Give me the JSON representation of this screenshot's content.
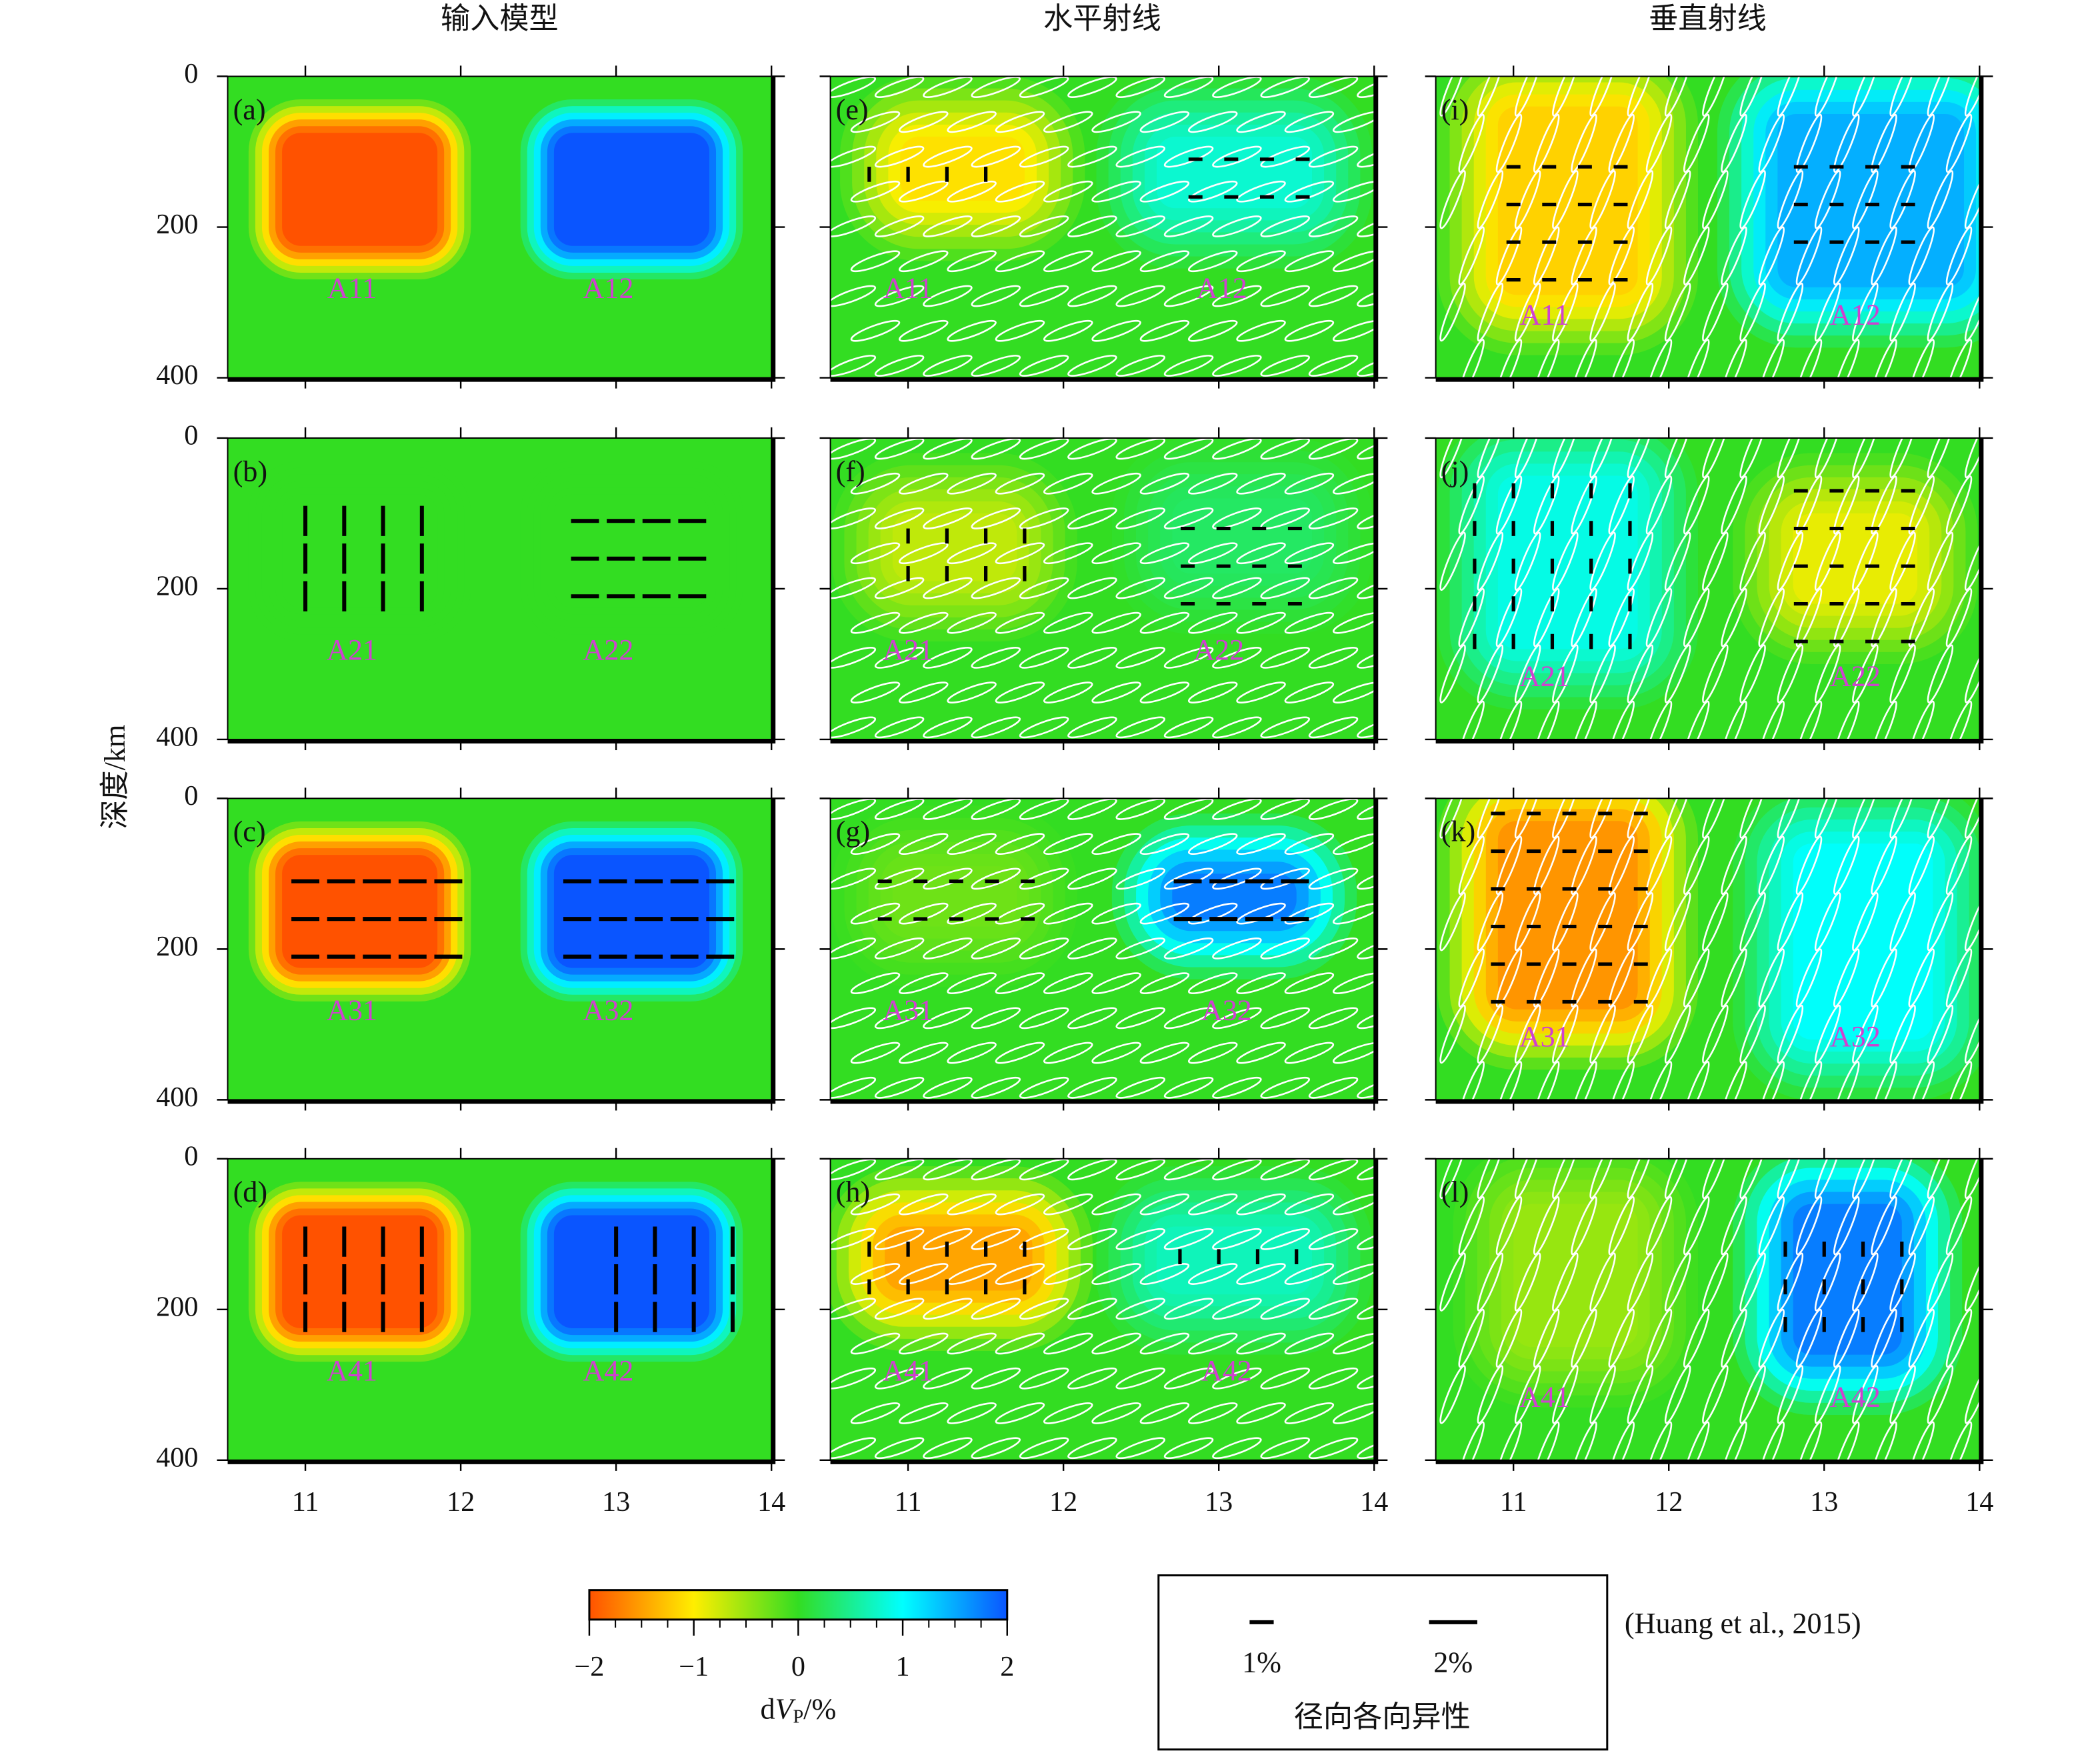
{
  "chart_data": {
    "type": "anomaly-panels",
    "column_titles": [
      "输入模型",
      "水平射线",
      "垂直射线"
    ],
    "ylabel": "深度/km",
    "xlim": [
      10.5,
      14
    ],
    "ylim": [
      0,
      400
    ],
    "xticks": [
      11,
      12,
      13,
      14
    ],
    "yticks": [
      0,
      200,
      400
    ],
    "panels": [
      {
        "label": "(a)",
        "anomalies": [
          {
            "name": "A11",
            "value": -2,
            "x": [
              10.85,
              11.85
            ],
            "depth": [
              75,
              225
            ],
            "label_at": [
              11.3,
              285
            ]
          },
          {
            "name": "A12",
            "value": 2,
            "x": [
              12.6,
              13.6
            ],
            "depth": [
              75,
              225
            ],
            "label_at": [
              12.95,
              285
            ]
          }
        ]
      },
      {
        "label": "(b)",
        "anomalies": [
          {
            "name": "A21",
            "value": 0,
            "x": [
              10.85,
              11.85
            ],
            "depth": [
              75,
              225
            ],
            "label_at": [
              11.3,
              285
            ],
            "bars": {
              "x": [
                11,
                11.75
              ],
              "depth": [
                90,
                230
              ]
            },
            "orientation": "vertical",
            "anisotropy": 2
          },
          {
            "name": "A22",
            "value": 0,
            "x": [
              12.6,
              13.6
            ],
            "depth": [
              75,
              225
            ],
            "label_at": [
              12.95,
              285
            ],
            "bars": {
              "x": [
                12.7,
                13.6
              ],
              "depth": [
                110,
                210
              ]
            },
            "orientation": "horizontal",
            "anisotropy": 2
          }
        ]
      },
      {
        "label": "(c)",
        "anomalies": [
          {
            "name": "A31",
            "value": -2,
            "x": [
              10.85,
              11.85
            ],
            "depth": [
              75,
              225
            ],
            "label_at": [
              11.3,
              285
            ],
            "bars": {
              "x": [
                10.9,
                11.85
              ],
              "depth": [
                110,
                210
              ]
            },
            "orientation": "horizontal",
            "anisotropy": 2
          },
          {
            "name": "A32",
            "value": 2,
            "x": [
              12.6,
              13.6
            ],
            "depth": [
              75,
              225
            ],
            "label_at": [
              12.95,
              285
            ],
            "bars": {
              "x": [
                12.65,
                13.6
              ],
              "depth": [
                110,
                210
              ]
            },
            "orientation": "horizontal",
            "anisotropy": 2
          }
        ]
      },
      {
        "label": "(d)",
        "anomalies": [
          {
            "name": "A41",
            "value": -2,
            "x": [
              10.85,
              11.85
            ],
            "depth": [
              75,
              225
            ],
            "label_at": [
              11.3,
              285
            ],
            "bars": {
              "x": [
                11,
                11.75
              ],
              "depth": [
                90,
                230
              ]
            },
            "orientation": "vertical",
            "anisotropy": 2
          },
          {
            "name": "A42",
            "value": 2,
            "x": [
              12.6,
              13.6
            ],
            "depth": [
              75,
              225
            ],
            "label_at": [
              12.95,
              285
            ],
            "bars": {
              "x": [
                13,
                13.75
              ],
              "depth": [
                90,
                230
              ]
            },
            "orientation": "vertical",
            "anisotropy": 2
          }
        ]
      },
      {
        "label": "(e)",
        "anomalies": [
          {
            "name": "A11",
            "value": -1.1,
            "x": [
              10.95,
              11.75
            ],
            "depth": [
              80,
              165
            ],
            "label_at": [
              11,
              285
            ],
            "bars": {
              "x": [
                10.75,
                11.5
              ],
              "depth": [
                110,
                160
              ]
            },
            "orientation": "vertical",
            "anisotropy": 1
          },
          {
            "name": "A12",
            "value": 0.8,
            "x": [
              12.6,
              13.6
            ],
            "depth": [
              80,
              175
            ],
            "label_at": [
              13.02,
              285
            ],
            "bars": {
              "x": [
                12.75,
                13.5
              ],
              "depth": [
                110,
                160
              ]
            },
            "orientation": "horizontal",
            "anisotropy": 1
          }
        ]
      },
      {
        "label": "(f)",
        "anomalies": [
          {
            "name": "A21",
            "value": -0.7,
            "x": [
              10.9,
              11.7
            ],
            "depth": [
              100,
              190
            ],
            "label_at": [
              11,
              285
            ],
            "bars": {
              "x": [
                11,
                11.75
              ],
              "depth": [
                110,
                210
              ]
            },
            "orientation": "vertical",
            "anisotropy": 1
          },
          {
            "name": "A22",
            "value": 0.3,
            "x": [
              12.7,
              13.6
            ],
            "depth": [
              80,
              180
            ],
            "label_at": [
              13,
              285
            ],
            "bars": {
              "x": [
                12.7,
                13.5
              ],
              "depth": [
                120,
                220
              ]
            },
            "orientation": "horizontal",
            "anisotropy": 1
          }
        ]
      },
      {
        "label": "(g)",
        "anomalies": [
          {
            "name": "A31",
            "value": -0.3,
            "x": [
              10.9,
              11.7
            ],
            "depth": [
              90,
              170
            ],
            "label_at": [
              11,
              285
            ],
            "bars": {
              "x": [
                10.75,
                11.75
              ],
              "depth": [
                110,
                160
              ]
            },
            "orientation": "horizontal",
            "anisotropy": 1
          },
          {
            "name": "A32",
            "value": 1.8,
            "x": [
              12.7,
              13.5
            ],
            "depth": [
              100,
              160
            ],
            "label_at": [
              13.05,
              285
            ],
            "bars": {
              "x": [
                12.7,
                13.5
              ],
              "depth": [
                110,
                160
              ]
            },
            "orientation": "horizontal",
            "anisotropy": 2
          }
        ]
      },
      {
        "label": "(h)",
        "anomalies": [
          {
            "name": "A41",
            "value": -1.5,
            "x": [
              10.85,
              11.8
            ],
            "depth": [
              90,
              175
            ],
            "label_at": [
              11,
              285
            ],
            "bars": {
              "x": [
                10.75,
                11.75
              ],
              "depth": [
                100,
                190
              ]
            },
            "orientation": "vertical",
            "anisotropy": 1
          },
          {
            "name": "A42",
            "value": 0.7,
            "x": [
              12.6,
              13.6
            ],
            "depth": [
              90,
              180
            ],
            "label_at": [
              13.05,
              285
            ],
            "bars": {
              "x": [
                12.75,
                13.5
              ],
              "depth": [
                110,
                160
              ]
            },
            "orientation": "vertical",
            "anisotropy": 1
          }
        ]
      },
      {
        "label": "(i)",
        "anomalies": [
          {
            "name": "A11",
            "value": -1.2,
            "x": [
              10.9,
              11.8
            ],
            "depth": [
              40,
              290
            ],
            "label_at": [
              11.2,
              320
            ],
            "bars": {
              "x": [
                10.9,
                11.8
              ],
              "depth": [
                120,
                270
              ]
            },
            "orientation": "horizontal",
            "anisotropy": 1
          },
          {
            "name": "A12",
            "value": 1.5,
            "x": [
              12.7,
              13.9
            ],
            "depth": [
              50,
              280
            ],
            "label_at": [
              13.2,
              320
            ],
            "bars": {
              "x": [
                12.75,
                13.5
              ],
              "depth": [
                120,
                220
              ]
            },
            "orientation": "horizontal",
            "anisotropy": 1
          }
        ]
      },
      {
        "label": "(j)",
        "anomalies": [
          {
            "name": "A21",
            "value": 0.9,
            "x": [
              10.9,
              11.8
            ],
            "depth": [
              50,
              280
            ],
            "label_at": [
              11.2,
              320
            ],
            "bars": {
              "x": [
                10.75,
                11.75
              ],
              "depth": [
                50,
                300
              ]
            },
            "orientation": "vertical",
            "anisotropy": 1
          },
          {
            "name": "A22",
            "value": -0.9,
            "x": [
              12.8,
              13.6
            ],
            "depth": [
              100,
              220
            ],
            "label_at": [
              13.2,
              320
            ],
            "bars": {
              "x": [
                12.75,
                13.5
              ],
              "depth": [
                70,
                270
              ]
            },
            "orientation": "horizontal",
            "anisotropy": 1
          }
        ]
      },
      {
        "label": "(k)",
        "anomalies": [
          {
            "name": "A31",
            "value": -1.6,
            "x": [
              10.9,
              11.8
            ],
            "depth": [
              30,
              280
            ],
            "label_at": [
              11.2,
              320
            ],
            "bars": {
              "x": [
                10.8,
                11.8
              ],
              "depth": [
                20,
                270
              ]
            },
            "orientation": "horizontal",
            "anisotropy": 1
          },
          {
            "name": "A32",
            "value": 1,
            "x": [
              12.8,
              13.7
            ],
            "depth": [
              60,
              320
            ],
            "label_at": [
              13.2,
              320
            ]
          }
        ]
      },
      {
        "label": "(l)",
        "anomalies": [
          {
            "name": "A41",
            "value": -0.5,
            "x": [
              11,
              11.8
            ],
            "depth": [
              60,
              250
            ],
            "label_at": [
              11.2,
              320
            ]
          },
          {
            "name": "A42",
            "value": 1.8,
            "x": [
              12.8,
              13.5
            ],
            "depth": [
              60,
              260
            ],
            "label_at": [
              13.2,
              320
            ],
            "bars": {
              "x": [
                12.75,
                13.5
              ],
              "depth": [
                100,
                220
              ]
            },
            "orientation": "vertical",
            "anisotropy": 1
          }
        ]
      }
    ],
    "colorbar": {
      "ticks": [
        {
          "value": -2,
          "label": "−2"
        },
        {
          "value": -1,
          "label": "−1"
        },
        0,
        1,
        2
      ],
      "colors": [
        "#ff5200",
        "#ffee00",
        "#33dd22",
        "#00ffff",
        "#0a55ff"
      ],
      "label": [
        "d",
        "V",
        "P",
        "/%"
      ]
    },
    "legend": {
      "title": "径向各向异性",
      "items": [
        {
          "value": 1,
          "label": "1%"
        },
        {
          "value": 2,
          "label": "2%"
        }
      ]
    },
    "source": "(Huang et al., 2015)"
  }
}
